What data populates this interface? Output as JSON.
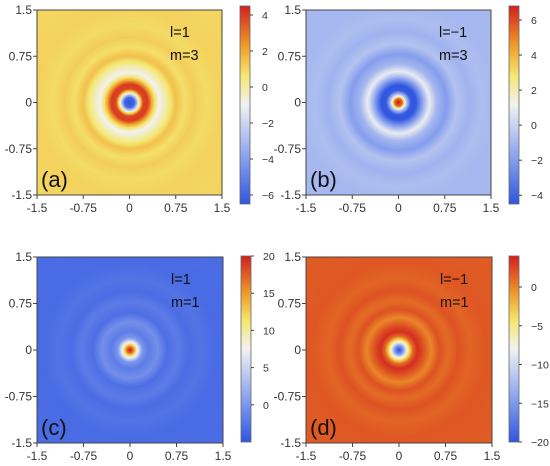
{
  "chart_data": [
    {
      "type": "heatmap",
      "panel_label": "(a)",
      "params": [
        "l=1",
        "m=3"
      ],
      "xlim": [
        -1.5,
        1.5
      ],
      "ylim": [
        -1.5,
        1.5
      ],
      "xticks": [
        "-1.5",
        "-0.75",
        "0",
        "0.75",
        "1.5"
      ],
      "yticks": [
        "-1.5",
        "-0.75",
        "0",
        "0.75",
        "1.5"
      ],
      "colorbar": {
        "min": -6.5,
        "max": 4.5,
        "ticks": [
          4,
          2,
          0,
          -2,
          -4,
          -6
        ],
        "tick_labels": [
          "4",
          "2",
          "0",
          "−2",
          "−4",
          "−6"
        ]
      },
      "radial_profile": [
        [
          0,
          -6.5
        ],
        [
          0.08,
          -6
        ],
        [
          0.16,
          0
        ],
        [
          0.22,
          3.8
        ],
        [
          0.3,
          4
        ],
        [
          0.38,
          1.5
        ],
        [
          0.48,
          -1
        ],
        [
          0.6,
          0
        ],
        [
          0.75,
          1.5
        ],
        [
          0.9,
          0.8
        ],
        [
          1.05,
          1.2
        ],
        [
          1.25,
          0.9
        ],
        [
          1.5,
          1.1
        ],
        [
          2.2,
          1.0
        ]
      ]
    },
    {
      "type": "heatmap",
      "panel_label": "(b)",
      "params": [
        "l=−1",
        "m=3"
      ],
      "xlim": [
        -1.5,
        1.5
      ],
      "ylim": [
        -1.5,
        1.5
      ],
      "xticks": [
        "-1.5",
        "-0.75",
        "0",
        "0.75",
        "1.5"
      ],
      "yticks": [
        "-1.5",
        "-0.75",
        "0",
        "0.75",
        "1.5"
      ],
      "colorbar": {
        "min": -4.5,
        "max": 6.8,
        "ticks": [
          6,
          4,
          2,
          0,
          -2,
          -4
        ],
        "tick_labels": [
          "6",
          "4",
          "2",
          "0",
          "−2",
          "−4"
        ]
      },
      "radial_profile": [
        [
          0,
          6.8
        ],
        [
          0.06,
          5.5
        ],
        [
          0.12,
          0
        ],
        [
          0.2,
          -4.3
        ],
        [
          0.28,
          -4.5
        ],
        [
          0.38,
          -2
        ],
        [
          0.5,
          1
        ],
        [
          0.62,
          -1
        ],
        [
          0.78,
          -2
        ],
        [
          0.95,
          -0.6
        ],
        [
          1.15,
          -1.2
        ],
        [
          1.35,
          -0.8
        ],
        [
          1.6,
          -1.0
        ],
        [
          2.2,
          -1.0
        ]
      ]
    },
    {
      "type": "heatmap",
      "panel_label": "(c)",
      "params": [
        "l=1",
        "m=1"
      ],
      "xlim": [
        -1.5,
        1.5
      ],
      "ylim": [
        -1.5,
        1.5
      ],
      "xticks": [
        "-1.5",
        "-0.75",
        "0",
        "0.75",
        "1.5"
      ],
      "yticks": [
        "-1.5",
        "-0.75",
        "0",
        "0.75",
        "1.5"
      ],
      "colorbar": {
        "min": -5,
        "max": 20,
        "ticks": [
          20,
          15,
          10,
          5,
          0
        ],
        "tick_labels": [
          "20",
          "15",
          "10",
          "5",
          "0"
        ]
      },
      "radial_profile": [
        [
          0,
          20
        ],
        [
          0.05,
          17
        ],
        [
          0.12,
          8
        ],
        [
          0.2,
          0
        ],
        [
          0.3,
          -2
        ],
        [
          0.45,
          -0.5
        ],
        [
          0.6,
          -3
        ],
        [
          0.78,
          -2
        ],
        [
          0.95,
          -3.2
        ],
        [
          1.15,
          -2.6
        ],
        [
          1.4,
          -3.3
        ],
        [
          2.2,
          -3.2
        ]
      ]
    },
    {
      "type": "heatmap",
      "panel_label": "(d)",
      "params": [
        "l=−1",
        "m=1"
      ],
      "xlim": [
        -1.5,
        1.5
      ],
      "ylim": [
        -1.5,
        1.5
      ],
      "xticks": [
        "-1.5",
        "-0.75",
        "0",
        "0.75",
        "1.5"
      ],
      "yticks": [
        "-1.5",
        "-0.75",
        "0",
        "0.75",
        "1.5"
      ],
      "colorbar": {
        "min": -20,
        "max": 4,
        "ticks": [
          0,
          -5,
          -10,
          -15,
          -20
        ],
        "tick_labels": [
          "0",
          "−5",
          "−10",
          "−15",
          "−20"
        ]
      },
      "radial_profile": [
        [
          0,
          -20
        ],
        [
          0.06,
          -16
        ],
        [
          0.14,
          -6
        ],
        [
          0.22,
          1
        ],
        [
          0.3,
          3.5
        ],
        [
          0.4,
          2
        ],
        [
          0.52,
          0
        ],
        [
          0.65,
          2
        ],
        [
          0.8,
          1
        ],
        [
          0.95,
          2
        ],
        [
          1.15,
          1.3
        ],
        [
          1.4,
          1.8
        ],
        [
          2.2,
          1.6
        ]
      ]
    }
  ]
}
